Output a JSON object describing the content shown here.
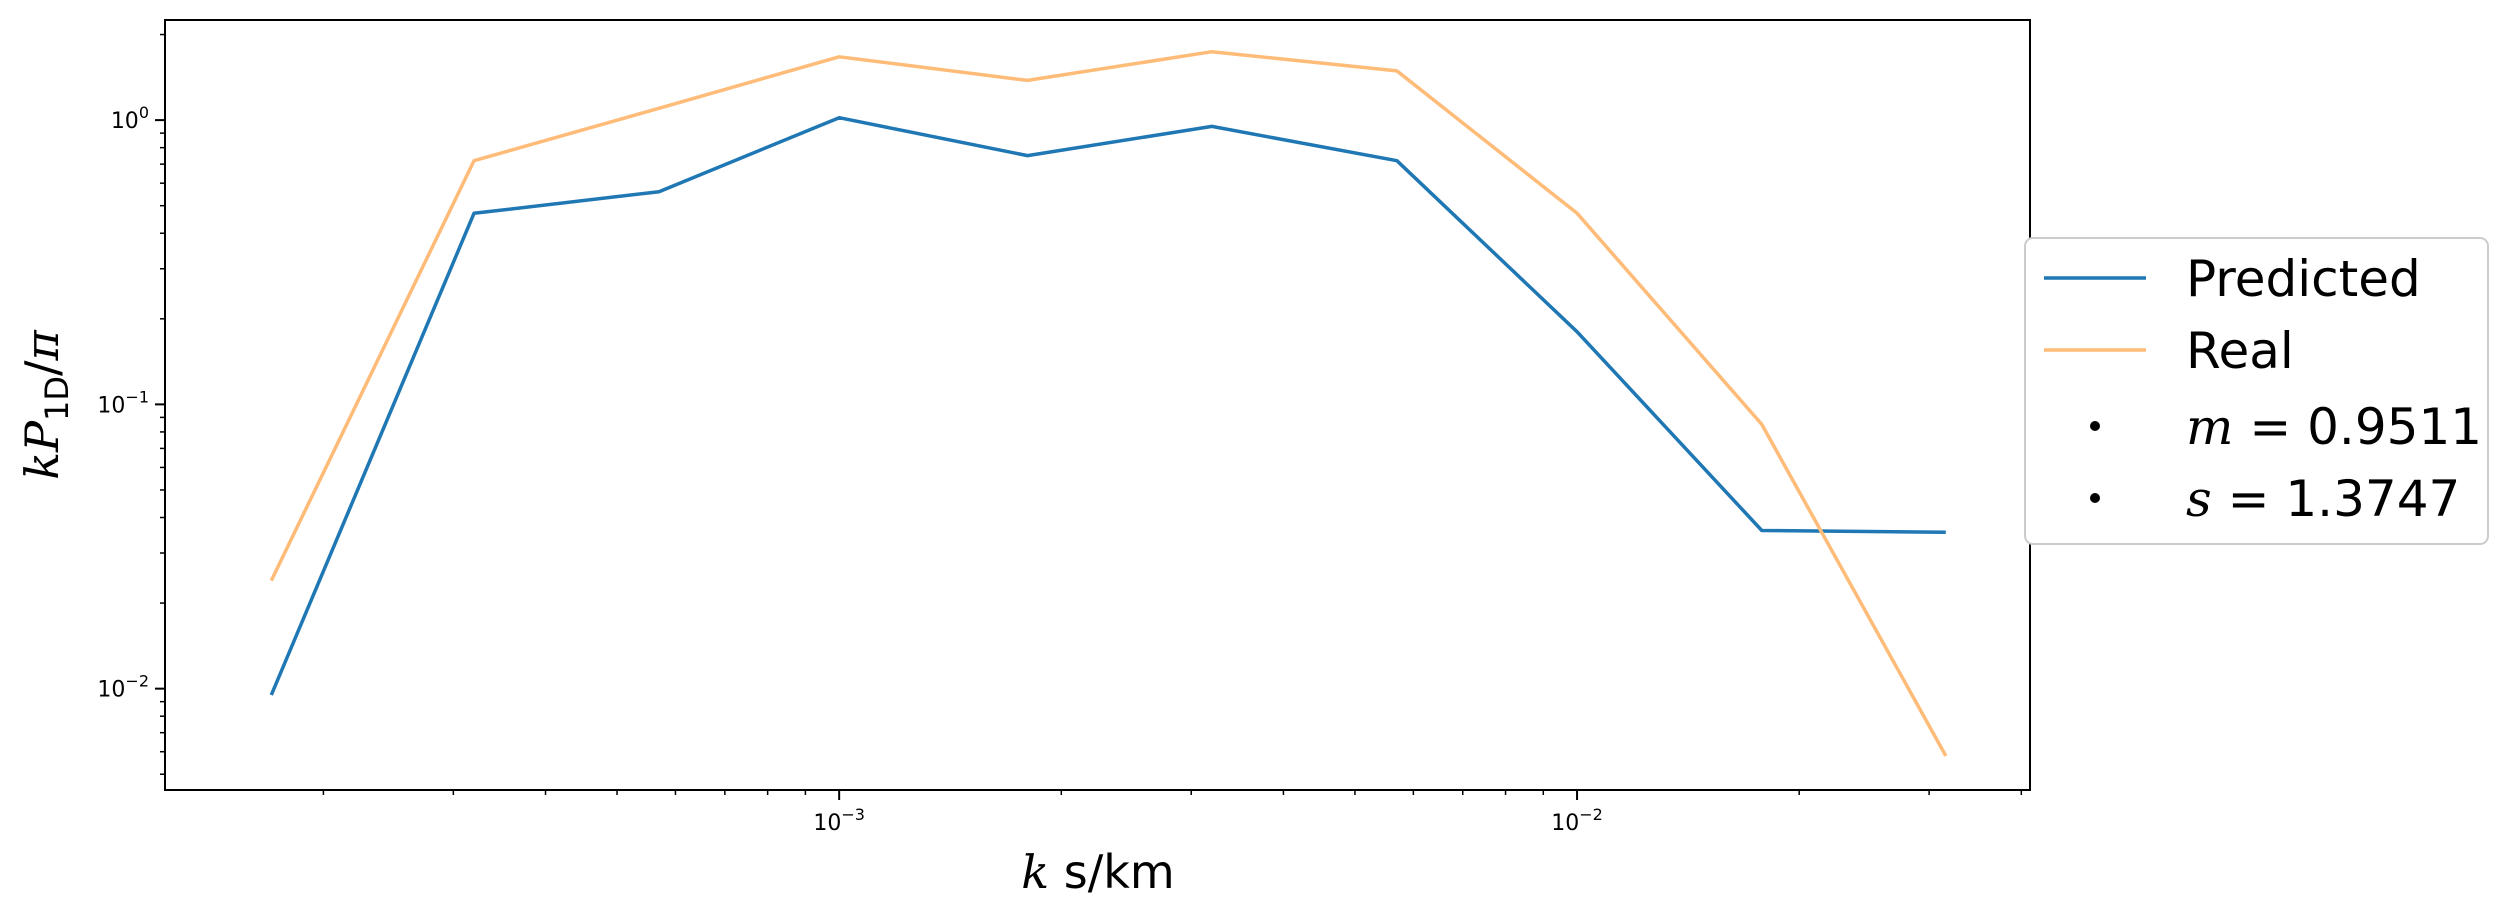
{
  "chart_data": {
    "type": "line",
    "xscale": "log",
    "yscale": "log",
    "xlim": [
      0.000122,
      0.0411
    ],
    "ylim": [
      0.0044,
      2.25
    ],
    "grid": false,
    "legend_placement": "outside-right",
    "xlabel": {
      "italic": "k",
      "rest": " s/km"
    },
    "ylabel": {
      "italic": "kP",
      "sub": "1D",
      "rest": "/",
      "italic2": "π"
    },
    "xticks": [
      {
        "value": 0.001,
        "base": "10",
        "exp": "−3"
      },
      {
        "value": 0.01,
        "base": "10",
        "exp": "−2"
      }
    ],
    "yticks": [
      {
        "value": 0.01,
        "base": "10",
        "exp": "−2"
      },
      {
        "value": 0.1,
        "base": "10",
        "exp": "−1"
      },
      {
        "value": 1,
        "base": "10",
        "exp": "0"
      }
    ],
    "series": [
      {
        "name": "Predicted",
        "color": "#1f77b4",
        "x": [
          0.00017,
          0.00032,
          0.00057,
          0.001,
          0.0018,
          0.0032,
          0.0057,
          0.01,
          0.0178,
          0.0316
        ],
        "y": [
          0.0095,
          0.47,
          0.56,
          1.02,
          0.75,
          0.95,
          0.72,
          0.18,
          0.036,
          0.0355
        ]
      },
      {
        "name": "Real",
        "color": "#ffbb78",
        "x": [
          0.00017,
          0.00032,
          0.00057,
          0.001,
          0.0018,
          0.0032,
          0.0057,
          0.01,
          0.0178,
          0.0316
        ],
        "y": [
          0.024,
          0.72,
          1.1,
          1.67,
          1.38,
          1.74,
          1.49,
          0.47,
          0.085,
          0.0058
        ]
      }
    ],
    "annotations": [
      {
        "var": "m",
        "eq": " = ",
        "value": "0.9511"
      },
      {
        "var": "s",
        "eq": " = ",
        "value": "1.3747"
      }
    ]
  }
}
